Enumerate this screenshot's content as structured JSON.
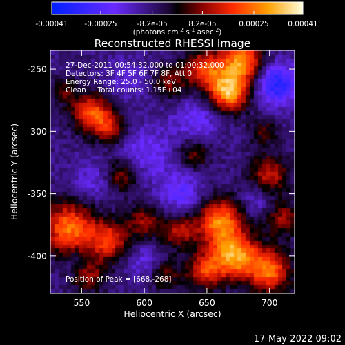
{
  "chart_data": {
    "type": "heatmap",
    "title": "Reconstructed RHESSI Image",
    "xlabel": "Heliocentric X (arcsec)",
    "ylabel": "Heliocentric Y (arcsec)",
    "xlim": [
      525,
      720
    ],
    "ylim": [
      -430,
      -235
    ],
    "x_ticks": [
      550,
      600,
      650,
      700
    ],
    "y_ticks": [
      -250,
      -300,
      -350,
      -400
    ],
    "colorbar": {
      "min": -0.00041,
      "max": 0.00041,
      "tick_values": [
        -0.00041,
        -0.00025,
        -8.2e-05,
        8.2e-05,
        0.00025,
        0.00041
      ],
      "tick_labels": [
        "-0.00041",
        "-0.00025",
        "-8.2e-05",
        "8.2e-05",
        "0.00025",
        "0.00041"
      ],
      "unit_parts": [
        "(photons cm",
        "-2",
        " s",
        "-1",
        " asec",
        "-2",
        ")"
      ]
    },
    "annotations": [
      "27-Dec-2011 00:54:32.000 to 01:00:32.000",
      "Detectors: 3F 4F 5F 6F 7F 8F, Att 0",
      "Energy Range: 25.0 - 50.0 keV",
      "Clean     Total counts: 1.15E+04"
    ],
    "peak_label": "Position of Peak = [668,-268]",
    "sources": [
      {
        "x": 678,
        "y": -243,
        "v": 0.00036,
        "r": 12
      },
      {
        "x": 668,
        "y": -268,
        "v": 0.00041,
        "r": 11
      },
      {
        "x": 648,
        "y": -250,
        "v": 0.00028,
        "r": 11
      },
      {
        "x": 558,
        "y": -285,
        "v": 0.0003,
        "r": 11
      },
      {
        "x": 573,
        "y": -298,
        "v": 0.0002,
        "r": 9
      },
      {
        "x": 620,
        "y": -260,
        "v": 0.00016,
        "r": 9
      },
      {
        "x": 535,
        "y": -268,
        "v": 0.00012,
        "r": 8
      },
      {
        "x": 582,
        "y": -335,
        "v": 0.0002,
        "r": 10
      },
      {
        "x": 640,
        "y": -318,
        "v": 0.00016,
        "r": 9
      },
      {
        "x": 700,
        "y": -335,
        "v": 0.00022,
        "r": 11
      },
      {
        "x": 540,
        "y": -378,
        "v": 0.00034,
        "r": 15
      },
      {
        "x": 572,
        "y": -388,
        "v": 0.00026,
        "r": 11
      },
      {
        "x": 600,
        "y": -372,
        "v": 0.00018,
        "r": 10
      },
      {
        "x": 628,
        "y": -380,
        "v": 0.0002,
        "r": 10
      },
      {
        "x": 660,
        "y": -372,
        "v": 0.00034,
        "r": 13
      },
      {
        "x": 672,
        "y": -400,
        "v": 0.00038,
        "r": 13
      },
      {
        "x": 648,
        "y": -412,
        "v": 0.00024,
        "r": 10
      },
      {
        "x": 700,
        "y": -412,
        "v": 0.00032,
        "r": 12
      },
      {
        "x": 710,
        "y": -370,
        "v": 0.00018,
        "r": 10
      },
      {
        "x": 617,
        "y": -415,
        "v": 0.00014,
        "r": 9
      },
      {
        "x": 555,
        "y": -415,
        "v": 0.00018,
        "r": 10
      },
      {
        "x": 695,
        "y": -300,
        "v": 0.00012,
        "r": 8
      },
      {
        "x": 600,
        "y": -318,
        "v": -0.00012,
        "r": 16
      },
      {
        "x": 560,
        "y": -340,
        "v": -0.0001,
        "r": 12
      },
      {
        "x": 642,
        "y": -292,
        "v": -0.00012,
        "r": 13
      },
      {
        "x": 630,
        "y": -350,
        "v": -0.00014,
        "r": 13
      },
      {
        "x": 705,
        "y": -262,
        "v": -0.00025,
        "r": 12
      },
      {
        "x": 690,
        "y": -355,
        "v": -0.0001,
        "r": 9
      },
      {
        "x": 600,
        "y": -404,
        "v": -0.0001,
        "r": 10
      },
      {
        "x": 585,
        "y": -258,
        "v": -8e-05,
        "r": 12
      },
      {
        "x": 545,
        "y": -405,
        "v": -8e-05,
        "r": 8
      }
    ]
  },
  "footer": {
    "timestamp": "17-May-2022 09:02"
  }
}
